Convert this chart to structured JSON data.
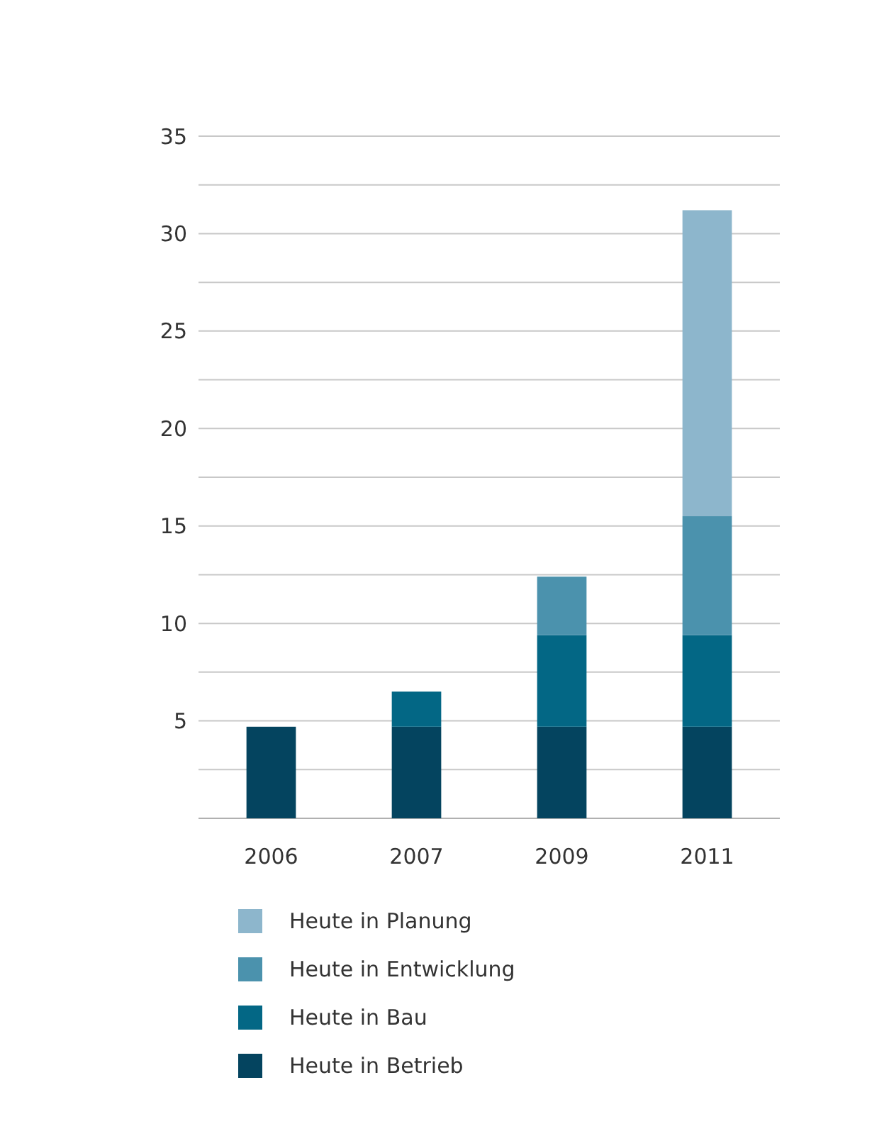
{
  "chart_data": {
    "type": "bar",
    "stacked": true,
    "categories": [
      "2006",
      "2007",
      "2009",
      "2011"
    ],
    "series": [
      {
        "name": "Heute in Betrieb",
        "color": "#04445f",
        "values": [
          4.7,
          4.7,
          4.7,
          4.7
        ]
      },
      {
        "name": "Heute in Bau",
        "color": "#036785",
        "values": [
          null,
          1.8,
          4.7,
          4.7
        ]
      },
      {
        "name": "Heute in Entwicklung",
        "color": "#4b92ad",
        "values": [
          null,
          null,
          3.0,
          6.1
        ]
      },
      {
        "name": "Heute in Planung",
        "color": "#8db6cc",
        "values": [
          null,
          null,
          null,
          15.7
        ]
      }
    ],
    "ylim": [
      0,
      35
    ],
    "yticks": [
      {
        "value": 0,
        "label": null
      },
      {
        "value": 2.5,
        "label": null
      },
      5,
      {
        "value": 7.5,
        "label": null
      },
      10,
      {
        "value": 12.5,
        "label": null
      },
      15,
      {
        "value": 17.5,
        "label": null
      },
      20,
      {
        "value": 22.5,
        "label": null
      },
      25,
      {
        "value": 27.5,
        "label": null
      },
      30,
      {
        "value": 32.5,
        "label": null
      },
      35
    ],
    "grid": "y",
    "legend": "bottom"
  }
}
